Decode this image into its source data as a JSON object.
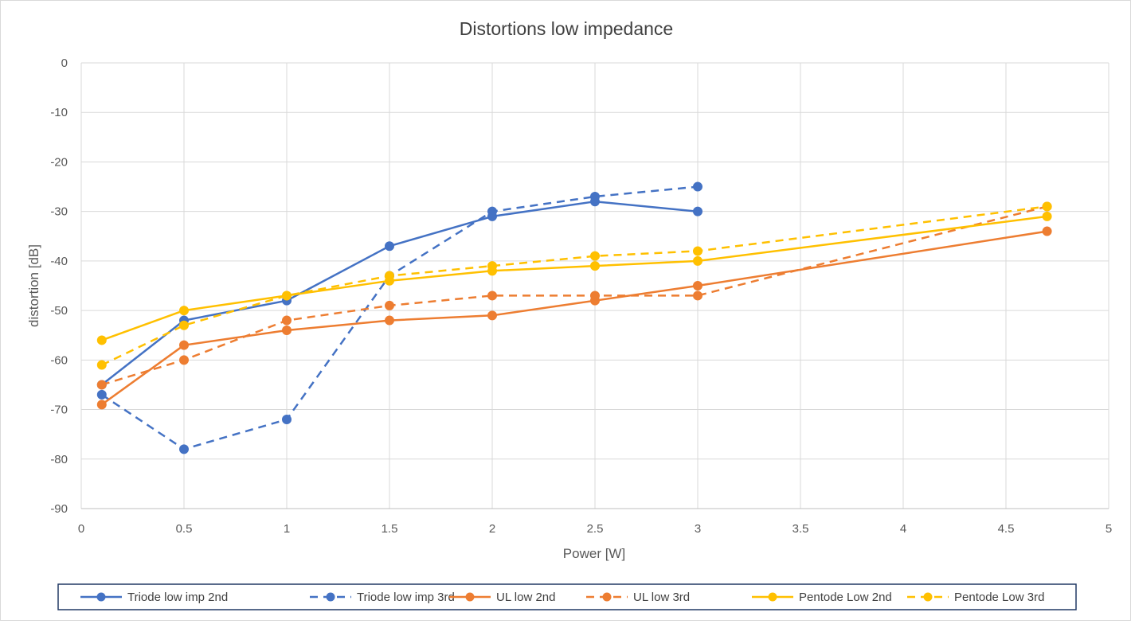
{
  "chart_data": {
    "type": "line",
    "title": "Distortions low impedance",
    "xlabel": "Power [W]",
    "ylabel": "distortion [dB]",
    "xlim": [
      0,
      5
    ],
    "ylim": [
      -90,
      0
    ],
    "x_ticks": [
      "0",
      "0.5",
      "1",
      "1.5",
      "2",
      "2.5",
      "3",
      "3.5",
      "4",
      "4.5",
      "5"
    ],
    "y_ticks": [
      "0",
      "-10",
      "-20",
      "-30",
      "-40",
      "-50",
      "-60",
      "-70",
      "-80",
      "-90"
    ],
    "grid": true,
    "legend_position": "bottom",
    "series": [
      {
        "name": "Triode low imp 2nd",
        "color": "#4472C4",
        "dash": "solid",
        "points": [
          [
            0.1,
            -65
          ],
          [
            0.5,
            -52
          ],
          [
            1,
            -48
          ],
          [
            1.5,
            -37
          ],
          [
            2,
            -31
          ],
          [
            2.5,
            -28
          ],
          [
            3,
            -30
          ]
        ]
      },
      {
        "name": "Triode low imp 3rd",
        "color": "#4472C4",
        "dash": "dashed",
        "points": [
          [
            0.1,
            -67
          ],
          [
            0.5,
            -78
          ],
          [
            1,
            -72
          ],
          [
            1.5,
            -43
          ],
          [
            2,
            -30
          ],
          [
            2.5,
            -27
          ],
          [
            3,
            -25
          ]
        ]
      },
      {
        "name": "UL low  2nd",
        "color": "#ED7D31",
        "dash": "solid",
        "points": [
          [
            0.1,
            -69
          ],
          [
            0.5,
            -57
          ],
          [
            1,
            -54
          ],
          [
            1.5,
            -52
          ],
          [
            2,
            -51
          ],
          [
            2.5,
            -48
          ],
          [
            3,
            -45
          ],
          [
            4.7,
            -34
          ]
        ]
      },
      {
        "name": "UL low  3rd",
        "color": "#ED7D31",
        "dash": "dashed",
        "points": [
          [
            0.1,
            -65
          ],
          [
            0.5,
            -60
          ],
          [
            1,
            -52
          ],
          [
            1.5,
            -49
          ],
          [
            2,
            -47
          ],
          [
            2.5,
            -47
          ],
          [
            3,
            -47
          ],
          [
            4.7,
            -29
          ]
        ]
      },
      {
        "name": "Pentode Low  2nd",
        "color": "#FFC000",
        "dash": "solid",
        "points": [
          [
            0.1,
            -56
          ],
          [
            0.5,
            -50
          ],
          [
            1,
            -47
          ],
          [
            1.5,
            -44
          ],
          [
            2,
            -42
          ],
          [
            2.5,
            -41
          ],
          [
            3,
            -40
          ],
          [
            4.7,
            -31
          ]
        ]
      },
      {
        "name": "Pentode Low  3rd",
        "color": "#FFC000",
        "dash": "dashed",
        "points": [
          [
            0.1,
            -61
          ],
          [
            0.5,
            -53
          ],
          [
            1,
            -47
          ],
          [
            1.5,
            -43
          ],
          [
            2,
            -41
          ],
          [
            2.5,
            -39
          ],
          [
            3,
            -38
          ],
          [
            4.7,
            -29
          ]
        ]
      }
    ]
  }
}
